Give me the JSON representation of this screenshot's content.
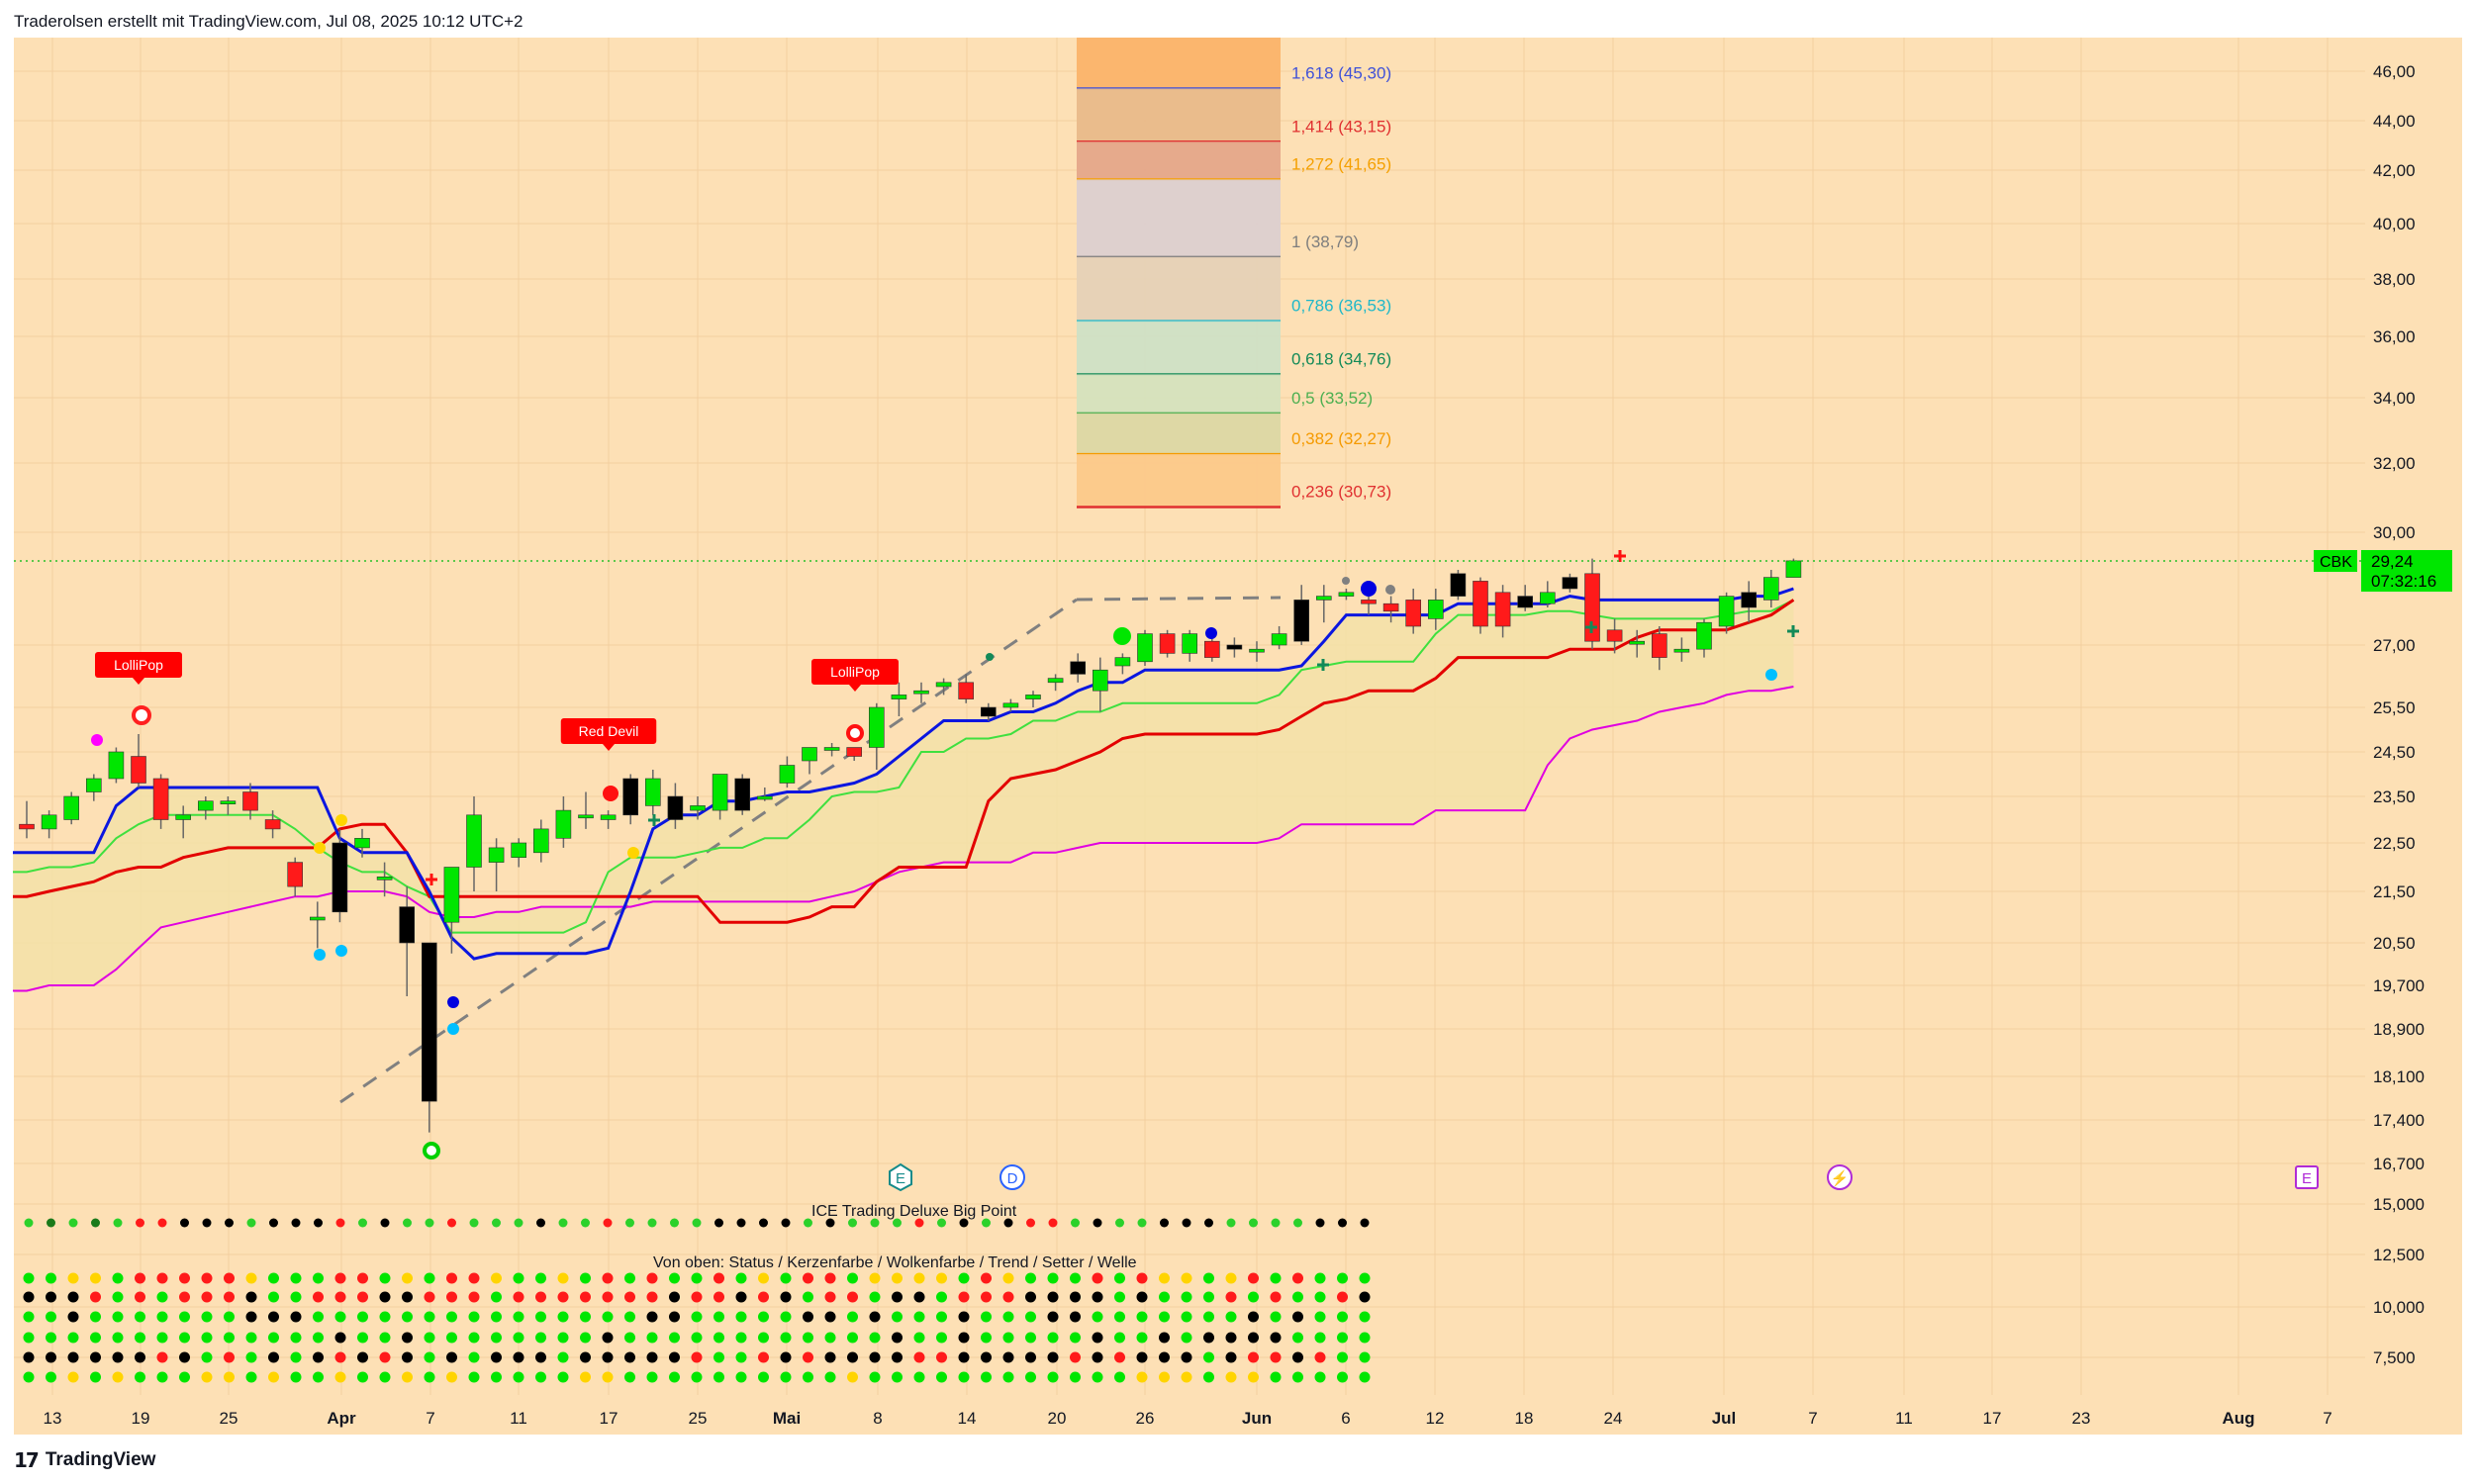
{
  "header": {
    "text": "Traderolsen erstellt mit TradingView.com, Jul 08, 2025 10:12 UTC+2"
  },
  "footer": {
    "logo_text": "TradingView",
    "logo_mark": "17"
  },
  "colors": {
    "background": "#fde0b5",
    "cloud": "#f3e1a8",
    "up": "#00e600",
    "down": "#ff1a1a",
    "neutral": "#000000",
    "line_blue": "#0b16e0",
    "line_red": "#e30000",
    "line_green": "#3fe03f",
    "line_magenta": "#e000e0"
  },
  "chart_data": {
    "type": "candlestick",
    "symbol": "CBK",
    "last_price": "29,24",
    "countdown": "07:32:16",
    "price_axis_labels": [
      "46,00",
      "44,00",
      "42,00",
      "40,00",
      "38,00",
      "36,00",
      "34,00",
      "32,00",
      "30,00",
      "27,00",
      "25,50",
      "24,50",
      "23,50",
      "22,50",
      "21,50",
      "20,50",
      "19,700",
      "18,900",
      "18,100",
      "17,400",
      "16,700",
      "15,000",
      "12,500",
      "10,000",
      "7,500"
    ],
    "time_axis_labels": [
      "13",
      "19",
      "25",
      "Apr",
      "7",
      "11",
      "17",
      "25",
      "Mai",
      "8",
      "14",
      "20",
      "26",
      "Jun",
      "6",
      "12",
      "18",
      "24",
      "Jul",
      "7",
      "11",
      "17",
      "23",
      "Aug",
      "7"
    ],
    "candles": [
      {
        "o": 22.9,
        "h": 23.4,
        "l": 22.6,
        "c": 22.8
      },
      {
        "o": 22.8,
        "h": 23.2,
        "l": 22.6,
        "c": 23.1
      },
      {
        "o": 23.0,
        "h": 23.6,
        "l": 22.9,
        "c": 23.5
      },
      {
        "o": 23.6,
        "h": 24.0,
        "l": 23.4,
        "c": 23.9
      },
      {
        "o": 23.9,
        "h": 24.6,
        "l": 23.8,
        "c": 24.5
      },
      {
        "o": 24.4,
        "h": 24.9,
        "l": 23.7,
        "c": 23.8
      },
      {
        "o": 23.9,
        "h": 24.0,
        "l": 22.8,
        "c": 23.0
      },
      {
        "o": 23.0,
        "h": 23.3,
        "l": 22.6,
        "c": 23.1
      },
      {
        "o": 23.2,
        "h": 23.5,
        "l": 23.0,
        "c": 23.4
      },
      {
        "o": 23.4,
        "h": 23.5,
        "l": 23.1,
        "c": 23.4
      },
      {
        "o": 23.6,
        "h": 23.8,
        "l": 23.0,
        "c": 23.2
      },
      {
        "o": 23.0,
        "h": 23.2,
        "l": 22.6,
        "c": 22.8
      },
      {
        "o": 22.1,
        "h": 22.2,
        "l": 21.4,
        "c": 21.6
      },
      {
        "o": 21.0,
        "h": 21.3,
        "l": 20.4,
        "c": 21.0
      },
      {
        "o": 22.5,
        "h": 22.8,
        "l": 20.9,
        "c": 21.1
      },
      {
        "o": 22.4,
        "h": 22.8,
        "l": 22.2,
        "c": 22.6
      },
      {
        "o": 21.8,
        "h": 22.1,
        "l": 21.4,
        "c": 21.8
      },
      {
        "o": 21.2,
        "h": 21.6,
        "l": 19.5,
        "c": 20.5
      },
      {
        "o": 20.5,
        "h": 20.5,
        "l": 17.2,
        "c": 17.7
      },
      {
        "o": 20.9,
        "h": 22.0,
        "l": 20.3,
        "c": 22.0
      },
      {
        "o": 22.0,
        "h": 23.5,
        "l": 21.5,
        "c": 23.1
      },
      {
        "o": 22.1,
        "h": 22.6,
        "l": 21.5,
        "c": 22.4
      },
      {
        "o": 22.2,
        "h": 22.6,
        "l": 22.0,
        "c": 22.5
      },
      {
        "o": 22.3,
        "h": 23.0,
        "l": 22.1,
        "c": 22.8
      },
      {
        "o": 22.6,
        "h": 23.5,
        "l": 22.4,
        "c": 23.2
      },
      {
        "o": 23.1,
        "h": 23.6,
        "l": 22.8,
        "c": 23.1
      },
      {
        "o": 23.0,
        "h": 23.2,
        "l": 22.8,
        "c": 23.1
      },
      {
        "o": 23.1,
        "h": 24.0,
        "l": 22.9,
        "c": 23.9
      },
      {
        "o": 23.3,
        "h": 24.1,
        "l": 23.1,
        "c": 23.9
      },
      {
        "o": 23.5,
        "h": 23.8,
        "l": 22.8,
        "c": 23.0
      },
      {
        "o": 23.2,
        "h": 23.5,
        "l": 23.0,
        "c": 23.3
      },
      {
        "o": 23.2,
        "h": 24.0,
        "l": 23.0,
        "c": 24.0
      },
      {
        "o": 23.2,
        "h": 24.0,
        "l": 23.1,
        "c": 23.9
      },
      {
        "o": 23.5,
        "h": 23.7,
        "l": 23.4,
        "c": 23.5
      },
      {
        "o": 23.8,
        "h": 24.4,
        "l": 23.7,
        "c": 24.2
      },
      {
        "o": 24.3,
        "h": 24.6,
        "l": 24.0,
        "c": 24.6
      },
      {
        "o": 24.6,
        "h": 24.7,
        "l": 24.4,
        "c": 24.6
      },
      {
        "o": 24.6,
        "h": 24.6,
        "l": 24.3,
        "c": 24.4
      },
      {
        "o": 24.6,
        "h": 25.6,
        "l": 24.1,
        "c": 25.5
      },
      {
        "o": 25.7,
        "h": 26.1,
        "l": 25.3,
        "c": 25.8
      },
      {
        "o": 25.9,
        "h": 26.1,
        "l": 25.6,
        "c": 25.9
      },
      {
        "o": 26.0,
        "h": 26.2,
        "l": 25.8,
        "c": 26.1
      },
      {
        "o": 26.1,
        "h": 26.3,
        "l": 25.6,
        "c": 25.7
      },
      {
        "o": 25.5,
        "h": 25.6,
        "l": 25.2,
        "c": 25.3
      },
      {
        "o": 25.5,
        "h": 25.7,
        "l": 25.4,
        "c": 25.6
      },
      {
        "o": 25.7,
        "h": 25.9,
        "l": 25.5,
        "c": 25.8
      },
      {
        "o": 26.1,
        "h": 26.3,
        "l": 25.9,
        "c": 26.2
      },
      {
        "o": 26.3,
        "h": 26.8,
        "l": 26.1,
        "c": 26.6
      },
      {
        "o": 25.9,
        "h": 26.7,
        "l": 25.4,
        "c": 26.4
      },
      {
        "o": 26.5,
        "h": 26.8,
        "l": 26.3,
        "c": 26.7
      },
      {
        "o": 26.6,
        "h": 27.4,
        "l": 26.5,
        "c": 27.3
      },
      {
        "o": 27.3,
        "h": 27.4,
        "l": 26.7,
        "c": 26.8
      },
      {
        "o": 26.8,
        "h": 27.4,
        "l": 26.6,
        "c": 27.3
      },
      {
        "o": 27.1,
        "h": 27.2,
        "l": 26.6,
        "c": 26.7
      },
      {
        "o": 26.9,
        "h": 27.2,
        "l": 26.7,
        "c": 27.0
      },
      {
        "o": 26.9,
        "h": 27.1,
        "l": 26.6,
        "c": 26.9
      },
      {
        "o": 27.0,
        "h": 27.5,
        "l": 26.9,
        "c": 27.3
      },
      {
        "o": 27.1,
        "h": 28.6,
        "l": 27.0,
        "c": 28.2
      },
      {
        "o": 28.2,
        "h": 28.6,
        "l": 27.6,
        "c": 28.3
      },
      {
        "o": 28.3,
        "h": 28.5,
        "l": 28.2,
        "c": 28.4
      },
      {
        "o": 28.2,
        "h": 28.6,
        "l": 27.8,
        "c": 28.1
      },
      {
        "o": 28.1,
        "h": 28.3,
        "l": 27.6,
        "c": 27.9
      },
      {
        "o": 28.2,
        "h": 28.5,
        "l": 27.3,
        "c": 27.5
      },
      {
        "o": 27.7,
        "h": 28.5,
        "l": 27.4,
        "c": 28.2
      },
      {
        "o": 28.3,
        "h": 29.0,
        "l": 28.2,
        "c": 28.9
      },
      {
        "o": 28.7,
        "h": 28.8,
        "l": 27.3,
        "c": 27.5
      },
      {
        "o": 28.4,
        "h": 28.6,
        "l": 27.2,
        "c": 27.5
      },
      {
        "o": 28.3,
        "h": 28.6,
        "l": 27.9,
        "c": 28.0
      },
      {
        "o": 28.1,
        "h": 28.7,
        "l": 28.0,
        "c": 28.4
      },
      {
        "o": 28.5,
        "h": 28.9,
        "l": 28.4,
        "c": 28.8
      },
      {
        "o": 28.9,
        "h": 29.3,
        "l": 26.9,
        "c": 27.1
      },
      {
        "o": 27.4,
        "h": 27.7,
        "l": 26.8,
        "c": 27.1
      },
      {
        "o": 27.1,
        "h": 27.4,
        "l": 26.7,
        "c": 27.1
      },
      {
        "o": 27.3,
        "h": 27.5,
        "l": 26.4,
        "c": 26.7
      },
      {
        "o": 26.9,
        "h": 27.2,
        "l": 26.6,
        "c": 26.9
      },
      {
        "o": 26.9,
        "h": 27.7,
        "l": 26.7,
        "c": 27.6
      },
      {
        "o": 27.5,
        "h": 28.4,
        "l": 27.3,
        "c": 28.3
      },
      {
        "o": 28.0,
        "h": 28.7,
        "l": 27.6,
        "c": 28.4
      },
      {
        "o": 28.2,
        "h": 29.0,
        "l": 28.0,
        "c": 28.8
      },
      {
        "o": 28.8,
        "h": 29.3,
        "l": 28.8,
        "c": 29.24
      }
    ],
    "lines": {
      "blue": [
        22.3,
        22.3,
        22.3,
        22.3,
        23.3,
        23.7,
        23.7,
        23.7,
        23.7,
        23.7,
        23.7,
        23.7,
        23.7,
        23.7,
        22.6,
        22.3,
        22.3,
        22.3,
        21.5,
        20.6,
        20.2,
        20.3,
        20.3,
        20.3,
        20.3,
        20.3,
        20.4,
        21.5,
        22.8,
        23.1,
        23.1,
        23.4,
        23.4,
        23.5,
        23.6,
        23.6,
        23.7,
        23.8,
        24.0,
        24.4,
        24.8,
        25.2,
        25.2,
        25.2,
        25.4,
        25.4,
        25.6,
        25.9,
        26.1,
        26.1,
        26.4,
        26.4,
        26.4,
        26.4,
        26.4,
        26.4,
        26.4,
        26.5,
        27.1,
        27.8,
        27.8,
        27.8,
        27.8,
        27.8,
        28.1,
        28.1,
        28.1,
        28.1,
        28.1,
        28.3,
        28.2,
        28.2,
        28.2,
        28.2,
        28.2,
        28.2,
        28.2,
        28.3,
        28.3,
        28.5
      ],
      "green": [
        21.9,
        22.0,
        22.0,
        22.1,
        22.6,
        22.9,
        23.1,
        23.1,
        23.1,
        23.1,
        23.1,
        23.1,
        22.8,
        22.4,
        22.1,
        21.9,
        21.9,
        21.6,
        21.4,
        20.7,
        20.7,
        20.7,
        20.7,
        20.7,
        20.7,
        20.9,
        21.9,
        22.2,
        22.2,
        22.2,
        22.3,
        22.4,
        22.4,
        22.6,
        22.6,
        23.0,
        23.5,
        23.6,
        23.6,
        23.7,
        24.5,
        24.5,
        24.8,
        24.8,
        24.9,
        25.2,
        25.2,
        25.4,
        25.4,
        25.6,
        25.6,
        25.6,
        25.6,
        25.6,
        25.6,
        25.6,
        25.8,
        26.4,
        26.5,
        26.6,
        26.6,
        26.6,
        26.6,
        27.3,
        27.8,
        27.8,
        27.8,
        27.8,
        27.9,
        27.9,
        27.8,
        27.7,
        27.7,
        27.7,
        27.7,
        27.7,
        27.8,
        27.9,
        27.9,
        28.2
      ],
      "red": [
        21.4,
        21.5,
        21.6,
        21.7,
        21.9,
        22.0,
        22.0,
        22.2,
        22.3,
        22.4,
        22.4,
        22.4,
        22.4,
        22.4,
        22.8,
        22.9,
        22.9,
        22.3,
        21.4,
        21.4,
        21.4,
        21.4,
        21.4,
        21.4,
        21.4,
        21.4,
        21.4,
        21.4,
        21.4,
        21.4,
        21.4,
        20.9,
        20.9,
        20.9,
        20.9,
        21.0,
        21.2,
        21.2,
        21.7,
        22.0,
        22.0,
        22.0,
        22.0,
        23.4,
        23.9,
        24.0,
        24.1,
        24.3,
        24.5,
        24.8,
        24.9,
        24.9,
        24.9,
        24.9,
        24.9,
        24.9,
        25.0,
        25.3,
        25.6,
        25.7,
        25.9,
        25.9,
        25.9,
        26.2,
        26.7,
        26.7,
        26.7,
        26.7,
        26.7,
        26.9,
        26.9,
        26.9,
        27.2,
        27.4,
        27.4,
        27.4,
        27.4,
        27.6,
        27.8,
        28.2
      ],
      "magenta": [
        19.6,
        19.7,
        19.7,
        19.7,
        20.0,
        20.4,
        20.8,
        20.9,
        21.0,
        21.1,
        21.2,
        21.3,
        21.4,
        21.4,
        21.5,
        21.5,
        21.5,
        21.4,
        21.1,
        21.0,
        21.0,
        21.1,
        21.1,
        21.2,
        21.2,
        21.2,
        21.2,
        21.2,
        21.3,
        21.3,
        21.3,
        21.3,
        21.3,
        21.3,
        21.3,
        21.3,
        21.4,
        21.5,
        21.7,
        21.9,
        22.0,
        22.1,
        22.1,
        22.1,
        22.1,
        22.3,
        22.3,
        22.4,
        22.5,
        22.5,
        22.5,
        22.5,
        22.5,
        22.5,
        22.5,
        22.5,
        22.6,
        22.9,
        22.9,
        22.9,
        22.9,
        22.9,
        22.9,
        23.2,
        23.2,
        23.2,
        23.2,
        23.2,
        24.2,
        24.8,
        25.0,
        25.1,
        25.2,
        25.4,
        25.5,
        25.6,
        25.8,
        25.9,
        25.9,
        26.0
      ]
    },
    "fib_levels": [
      {
        "label": "1,618 (45,30)",
        "value": 45.3,
        "color": "#3f51d8"
      },
      {
        "label": "1,414 (43,15)",
        "value": 43.15,
        "color": "#e03030"
      },
      {
        "label": "1,272 (41,65)",
        "value": 41.65,
        "color": "#f5a000"
      },
      {
        "label": "1 (38,79)",
        "value": 38.79,
        "color": "#7e7e7e"
      },
      {
        "label": "0,786 (36,53)",
        "value": 36.53,
        "color": "#1fb8c9"
      },
      {
        "label": "0,618 (34,76)",
        "value": 34.76,
        "color": "#138a58"
      },
      {
        "label": "0,5 (33,52)",
        "value": 33.52,
        "color": "#4caf50"
      },
      {
        "label": "0,382 (32,27)",
        "value": 32.27,
        "color": "#f59a00"
      },
      {
        "label": "0,236 (30,73)",
        "value": 30.73,
        "color": "#e03030"
      }
    ],
    "signals": [
      {
        "label": "LolliPop",
        "color": "#ff0000"
      },
      {
        "label": "Red Devil",
        "color": "#ff0000"
      },
      {
        "label": "LolliPop",
        "color": "#ff0000"
      }
    ],
    "event_markers": [
      "E",
      "D",
      "⚡",
      "E"
    ],
    "indicator": {
      "title": "ICE Trading Deluxe Big Point",
      "subtitle": "Von oben: Status / Kerzenfarbe / Wolkenfarbe / Trend / Setter / Welle"
    }
  }
}
